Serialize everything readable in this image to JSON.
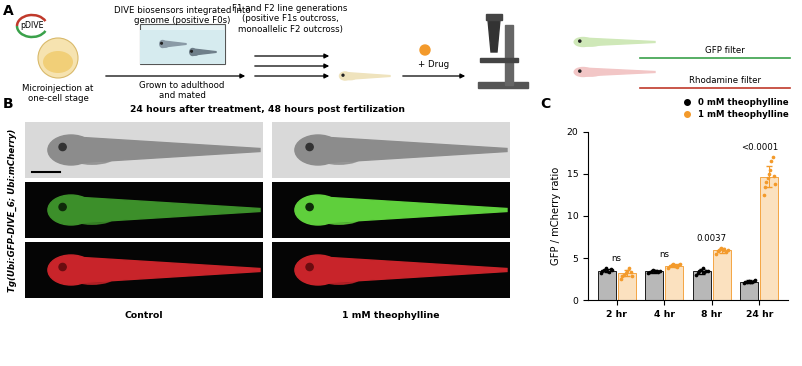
{
  "panel_labels": [
    "A",
    "B",
    "C"
  ],
  "diagram": {
    "plasmid": "pDIVE",
    "injection": "Microinjection at\none-cell stage",
    "integration": "DIVE biosensors integrated into\ngenome (positive F0s)",
    "growth": "Grown to adulthood\nand mated",
    "generations": "F1 and F2 line generations\n(positive F1s outcross,\nmonoallelic F2 outcross)",
    "drug": "+ Drug",
    "filters": [
      "GFP filter",
      "Rhodamine filter"
    ]
  },
  "images": {
    "title": "24 hours after treatment, 48 hours post fertilization",
    "row_label": "Tg(Ubi:GFP-DIVE_6; Ubi:mCherry)",
    "columns": [
      "Control",
      "1 mM theophylline"
    ]
  },
  "chart_data": {
    "type": "bar",
    "y_label": "GFP / mCherry ratio",
    "categories": [
      "2 hr",
      "4 hr",
      "8 hr",
      "24 hr"
    ],
    "ylim": [
      0,
      20
    ],
    "yticks": [
      0,
      5,
      10,
      15,
      20
    ],
    "grid": false,
    "legend": "upper right",
    "marker": "circle",
    "annotations": [
      "ns",
      "ns",
      "0.0037",
      "<0.0001"
    ],
    "series": [
      {
        "name": "0 mM theophylline",
        "color": "#000000",
        "values": [
          3.5,
          3.4,
          3.4,
          2.2
        ],
        "errors": [
          0.2,
          0.15,
          0.25,
          0.15
        ],
        "points": [
          [
            3.2,
            3.4,
            3.6,
            3.8,
            3.5,
            3.3,
            3.7,
            3.6
          ],
          [
            3.2,
            3.3,
            3.5,
            3.6,
            3.4,
            3.5,
            3.3,
            3.4
          ],
          [
            3.0,
            3.2,
            3.4,
            3.6,
            3.8,
            3.3,
            3.5,
            3.4
          ],
          [
            2.0,
            2.1,
            2.2,
            2.3,
            2.2,
            2.1,
            2.3,
            2.4
          ]
        ]
      },
      {
        "name": "1 mM theophylline",
        "color": "#f39a2b",
        "values": [
          3.2,
          4.1,
          5.9,
          14.7
        ],
        "errors": [
          0.4,
          0.2,
          0.25,
          1.3
        ],
        "points": [
          [
            2.5,
            2.8,
            3.0,
            3.2,
            3.5,
            3.8,
            3.3,
            2.9
          ],
          [
            3.8,
            4.0,
            4.2,
            4.3,
            4.1,
            3.9,
            4.2,
            4.3
          ],
          [
            5.5,
            5.8,
            6.0,
            6.2,
            5.9,
            6.1,
            5.7,
            6.0
          ],
          [
            12.5,
            13.5,
            14.0,
            14.5,
            15.0,
            15.5,
            16.5,
            17.0,
            14.8,
            13.8
          ]
        ]
      }
    ]
  }
}
